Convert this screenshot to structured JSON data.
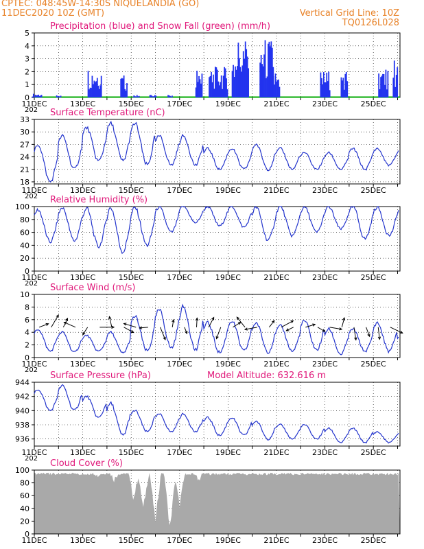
{
  "header": {
    "line1_left": "CPTEC:   048:45W-14:30S   NIQUELANDIA (GO)",
    "line2_left": "11DEC2020 10Z (GMT)",
    "line1_right": "Vertical Grid Line: 10Z",
    "line2_right": "TQ0126L028"
  },
  "colors": {
    "header": "#e8832a",
    "title": "#e0187a",
    "series": "#2233cc",
    "precip": "#2233ee",
    "snow": "#00aa00",
    "cloud": "#a9a9a9"
  },
  "x_axis": {
    "labels": [
      "11DEC",
      "13DEC",
      "15DEC",
      "17DEC",
      "19DEC",
      "21DEC",
      "23DEC",
      "25DEC"
    ],
    "cut_year_label": "202"
  },
  "chart_data": [
    {
      "id": "precip",
      "type": "bar",
      "title": "Precipitation (blue) and Snow Fall (green) (mm/h)",
      "ylim": [
        0,
        5
      ],
      "yticks": [
        0,
        1,
        2,
        3,
        4,
        5
      ],
      "grid": true,
      "bursts": [
        {
          "day": 0.1,
          "width": 0.4,
          "peak": 0.3
        },
        {
          "day": 1.0,
          "width": 0.2,
          "peak": 0.2
        },
        {
          "day": 2.5,
          "width": 0.6,
          "peak": 2.4
        },
        {
          "day": 3.7,
          "width": 0.3,
          "peak": 1.8
        },
        {
          "day": 4.2,
          "width": 0.3,
          "peak": 0.2
        },
        {
          "day": 4.9,
          "width": 0.3,
          "peak": 0.2
        },
        {
          "day": 5.6,
          "width": 0.2,
          "peak": 0.2
        },
        {
          "day": 6.8,
          "width": 0.3,
          "peak": 2.3
        },
        {
          "day": 7.6,
          "width": 0.8,
          "peak": 2.4
        },
        {
          "day": 8.5,
          "width": 0.7,
          "peak": 4.7
        },
        {
          "day": 9.6,
          "width": 0.6,
          "peak": 4.6
        },
        {
          "day": 10.0,
          "width": 0.3,
          "peak": 2.1
        },
        {
          "day": 12.0,
          "width": 0.4,
          "peak": 2.1
        },
        {
          "day": 12.8,
          "width": 0.3,
          "peak": 2.2
        },
        {
          "day": 14.4,
          "width": 0.4,
          "peak": 2.3
        },
        {
          "day": 14.9,
          "width": 0.2,
          "peak": 3.1
        }
      ],
      "snow": 0
    },
    {
      "id": "temp",
      "type": "line",
      "title": "Surface Temperature (nC)",
      "ylim": [
        17.5,
        33
      ],
      "yticks": [
        18,
        21,
        24,
        27,
        30,
        33
      ],
      "min": [
        18,
        21,
        23,
        23,
        22,
        22,
        22,
        21,
        21,
        21,
        21,
        21,
        21,
        21,
        22,
        22
      ],
      "max": [
        27,
        29,
        31,
        32,
        32,
        29,
        29,
        26,
        26,
        27,
        26,
        25,
        25,
        26,
        26,
        26
      ]
    },
    {
      "id": "rh",
      "type": "line",
      "title": "Relative Humidity (%)",
      "ylim": [
        0,
        100
      ],
      "yticks": [
        0,
        20,
        40,
        60,
        80,
        100
      ],
      "min": [
        45,
        47,
        38,
        30,
        40,
        60,
        75,
        70,
        68,
        48,
        55,
        60,
        65,
        50,
        55,
        65
      ],
      "max": [
        95,
        98,
        97,
        98,
        98,
        99,
        100,
        100,
        100,
        99,
        100,
        99,
        99,
        100,
        99,
        98
      ]
    },
    {
      "id": "wind",
      "type": "line",
      "title": "Surface Wind (m/s)",
      "ylim": [
        0,
        10
      ],
      "yticks": [
        0,
        2,
        4,
        6,
        8,
        10
      ],
      "max": [
        4.5,
        4.0,
        3.5,
        4.0,
        6.5,
        7.5,
        8.0,
        5.5,
        5.8,
        5.5,
        5.0,
        5.8,
        4.5,
        4.5,
        5.5,
        3.5
      ],
      "min": [
        1.0,
        0.8,
        1.0,
        0.7,
        1.0,
        1.5,
        1.2,
        0.8,
        1.0,
        0.9,
        1.0,
        1.2,
        0.5,
        1.0,
        1.0,
        1.5
      ]
    },
    {
      "id": "pres",
      "type": "line",
      "title": "Surface Pressure (hPa)",
      "annotation": "Model Altitude: 632.616  m",
      "ylim": [
        935,
        944
      ],
      "yticks": [
        936,
        938,
        940,
        942,
        944
      ],
      "max": [
        943,
        943.5,
        942,
        941,
        940,
        939.5,
        939.5,
        939,
        939,
        938.5,
        938,
        938,
        937.5,
        937.5,
        937,
        937
      ],
      "min": [
        940,
        940,
        939,
        936.5,
        937,
        937,
        937,
        936.5,
        936.5,
        936,
        936,
        936,
        935.5,
        935.5,
        935.5,
        935.5
      ]
    },
    {
      "id": "cloud",
      "type": "area",
      "title": "Cloud Cover (%)",
      "ylim": [
        0,
        100
      ],
      "yticks": [
        0,
        20,
        40,
        60,
        80,
        100
      ],
      "level": 96,
      "dips": [
        {
          "day": 2.6,
          "depth": 88
        },
        {
          "day": 3.3,
          "depth": 80
        },
        {
          "day": 4.1,
          "depth": 50
        },
        {
          "day": 4.5,
          "depth": 35
        },
        {
          "day": 5.0,
          "depth": 15
        },
        {
          "day": 5.6,
          "depth": 2
        },
        {
          "day": 6.0,
          "depth": 40
        },
        {
          "day": 6.8,
          "depth": 80
        }
      ]
    }
  ]
}
